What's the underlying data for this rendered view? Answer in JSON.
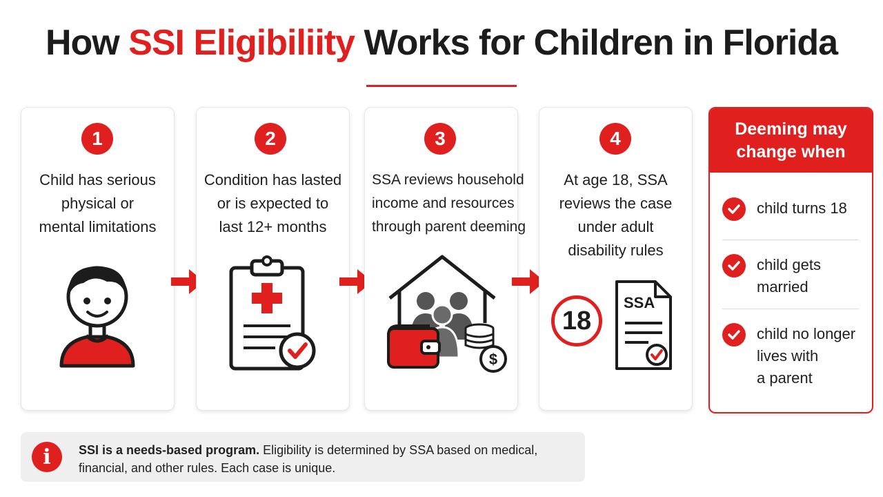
{
  "title": {
    "prefix": "How ",
    "accent": "SSI Eligibiliity",
    "suffix": " Works for Children in Florida"
  },
  "steps": [
    {
      "number": "1",
      "lines": [
        "Child has serious",
        "physical or",
        "mental limitations"
      ],
      "icon": "child-icon"
    },
    {
      "number": "2",
      "lines": [
        "Condition has lasted",
        "or is expected to",
        "last 12+ months"
      ],
      "icon": "medical-clipboard-icon"
    },
    {
      "number": "3",
      "lines": [
        "SSA reviews household",
        "income and resources",
        "through parent deeming"
      ],
      "icon": "household-income-icon"
    },
    {
      "number": "4",
      "lines": [
        "At age 18, SSA",
        "reviews the case",
        "under adult",
        "disability rules"
      ],
      "icon": "ssa-document-icon",
      "age_badge": "18",
      "doc_label": "SSA"
    }
  ],
  "deeming_box": {
    "heading_lines": [
      "Deeming may",
      "change when"
    ],
    "items": [
      {
        "lines": [
          "child turns 18"
        ]
      },
      {
        "lines": [
          "child gets",
          "married"
        ]
      },
      {
        "lines": [
          "child no longer",
          "lives with",
          "a parent"
        ]
      }
    ]
  },
  "note": {
    "icon_glyph": "i",
    "bold": "SSI is a needs-based program.",
    "text": " Eligibility is determined by SSA based on medical, financial, and other rules. Each case is unique."
  },
  "colors": {
    "accent": "#e0201f",
    "dark": "#1c1c1c",
    "gray": "#555555"
  }
}
